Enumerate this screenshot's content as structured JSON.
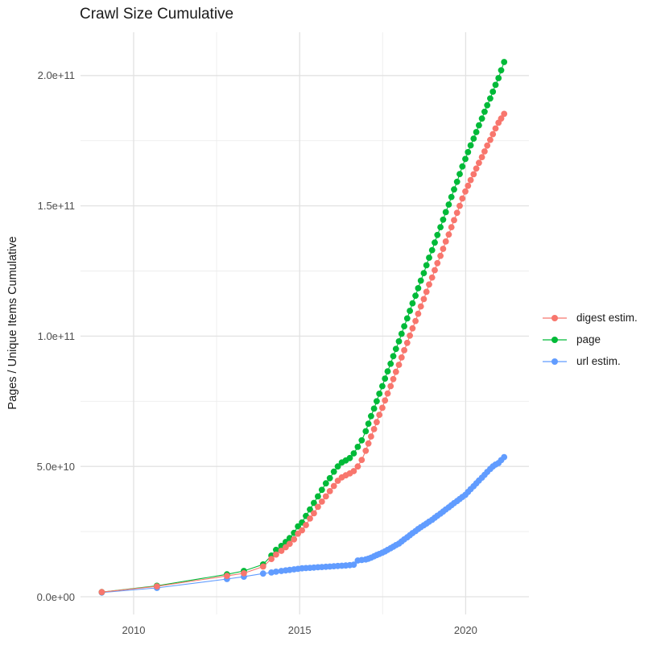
{
  "chart_data": {
    "type": "line",
    "title": "Crawl Size Cumulative",
    "xlabel": "",
    "ylabel": "Pages / Unique Items Cumulative",
    "legend_position": "right",
    "grid": true,
    "y_unit": "billions (1e9) of pages / unique items",
    "xlim": [
      2008.4,
      2021.9
    ],
    "ylim_e9": [
      0,
      216
    ],
    "x_ticks": [
      {
        "value": 2010,
        "label": "2010"
      },
      {
        "value": 2015,
        "label": "2015"
      },
      {
        "value": 2020,
        "label": "2020"
      }
    ],
    "y_ticks": [
      {
        "value_e9": 0,
        "label": "0.0e+00"
      },
      {
        "value_e9": 50,
        "label": "5.0e+10"
      },
      {
        "value_e9": 100,
        "label": "1.0e+11"
      },
      {
        "value_e9": 150,
        "label": "1.5e+11"
      },
      {
        "value_e9": 200,
        "label": "2.0e+11"
      }
    ],
    "x_minor_breaks": [
      2012.5,
      2017.5
    ],
    "y_minor_breaks_e9": [
      25,
      75,
      125,
      175
    ],
    "x": [
      2009.04,
      2010.7,
      2012.81,
      2013.32,
      2013.9,
      2014.15,
      2014.29,
      2014.45,
      2014.58,
      2014.7,
      2014.83,
      2014.95,
      2015.07,
      2015.19,
      2015.31,
      2015.43,
      2015.55,
      2015.67,
      2015.79,
      2015.91,
      2016.03,
      2016.15,
      2016.27,
      2016.39,
      2016.51,
      2016.63,
      2016.75,
      2016.87,
      2016.99,
      2017.07,
      2017.15,
      2017.24,
      2017.32,
      2017.4,
      2017.49,
      2017.57,
      2017.65,
      2017.74,
      2017.82,
      2017.9,
      2017.99,
      2018.07,
      2018.15,
      2018.24,
      2018.32,
      2018.4,
      2018.49,
      2018.57,
      2018.65,
      2018.74,
      2018.82,
      2018.9,
      2018.99,
      2019.07,
      2019.15,
      2019.24,
      2019.32,
      2019.4,
      2019.49,
      2019.57,
      2019.65,
      2019.74,
      2019.82,
      2019.9,
      2019.99,
      2020.07,
      2020.15,
      2020.24,
      2020.32,
      2020.4,
      2020.49,
      2020.57,
      2020.65,
      2020.74,
      2020.82,
      2020.9,
      2020.99,
      2021.07,
      2021.16
    ],
    "series": [
      {
        "name": "digest estim.",
        "color": "#F8766D",
        "values_e9": [
          1.8,
          4.0,
          8.0,
          9.0,
          11.6,
          14.5,
          16.2,
          17.6,
          19.0,
          20.3,
          22.0,
          24.2,
          25.5,
          27.5,
          30.0,
          32.0,
          34.5,
          36.5,
          38.5,
          40.5,
          42.5,
          44.5,
          45.8,
          46.6,
          47.3,
          48.2,
          50.0,
          52.5,
          56.0,
          58.8,
          61.5,
          64.3,
          67.0,
          69.8,
          72.5,
          75.3,
          78.0,
          80.8,
          83.5,
          86.3,
          89.0,
          91.8,
          94.6,
          97.4,
          100.2,
          103.0,
          105.8,
          108.6,
          111.4,
          114.2,
          117.0,
          119.8,
          122.5,
          125.3,
          128.0,
          130.8,
          133.5,
          136.3,
          139.0,
          141.8,
          144.5,
          147.3,
          150.0,
          152.8,
          155.5,
          157.7,
          159.9,
          162.1,
          164.3,
          166.5,
          168.7,
          170.9,
          173.1,
          175.3,
          177.5,
          179.7,
          181.9,
          183.5,
          185.3
        ]
      },
      {
        "name": "page",
        "color": "#00BA38",
        "values_e9": [
          1.8,
          4.2,
          8.6,
          9.9,
          12.4,
          15.8,
          18.0,
          19.5,
          21.0,
          22.5,
          24.5,
          27.0,
          28.5,
          31.0,
          33.5,
          36.0,
          38.5,
          41.0,
          43.5,
          45.5,
          48.0,
          50.0,
          51.5,
          52.3,
          53.2,
          55.0,
          57.5,
          60.0,
          63.5,
          66.4,
          69.3,
          72.2,
          75.0,
          77.9,
          80.8,
          83.7,
          86.5,
          89.4,
          92.3,
          95.1,
          98.0,
          100.9,
          103.8,
          106.8,
          109.7,
          112.6,
          115.5,
          118.4,
          121.3,
          124.2,
          127.2,
          130.1,
          133.0,
          135.9,
          138.8,
          141.8,
          144.7,
          147.6,
          150.5,
          153.4,
          156.3,
          159.2,
          162.2,
          165.1,
          168.0,
          170.6,
          173.2,
          175.8,
          178.3,
          180.9,
          183.5,
          186.1,
          188.6,
          191.2,
          193.8,
          196.4,
          199.0,
          202.0,
          205.2
        ]
      },
      {
        "name": "url estim.",
        "color": "#619CFF",
        "values_e9": [
          1.6,
          3.4,
          6.8,
          7.7,
          8.9,
          9.3,
          9.6,
          9.9,
          10.1,
          10.3,
          10.5,
          10.7,
          10.9,
          11.0,
          11.1,
          11.2,
          11.3,
          11.4,
          11.5,
          11.6,
          11.7,
          11.8,
          11.9,
          12.0,
          12.1,
          12.3,
          13.9,
          14.1,
          14.3,
          14.6,
          15.0,
          15.5,
          16.0,
          16.4,
          16.9,
          17.4,
          18.0,
          18.6,
          19.2,
          19.8,
          20.4,
          21.2,
          22.0,
          22.8,
          23.6,
          24.4,
          25.2,
          26.0,
          26.7,
          27.4,
          28.1,
          28.8,
          29.5,
          30.3,
          31.1,
          31.9,
          32.7,
          33.5,
          34.3,
          35.1,
          35.9,
          36.7,
          37.5,
          38.3,
          39.1,
          40.2,
          41.3,
          42.4,
          43.5,
          44.6,
          45.7,
          46.8,
          47.9,
          49.0,
          50.0,
          50.7,
          51.3,
          52.4,
          53.6
        ]
      }
    ]
  }
}
